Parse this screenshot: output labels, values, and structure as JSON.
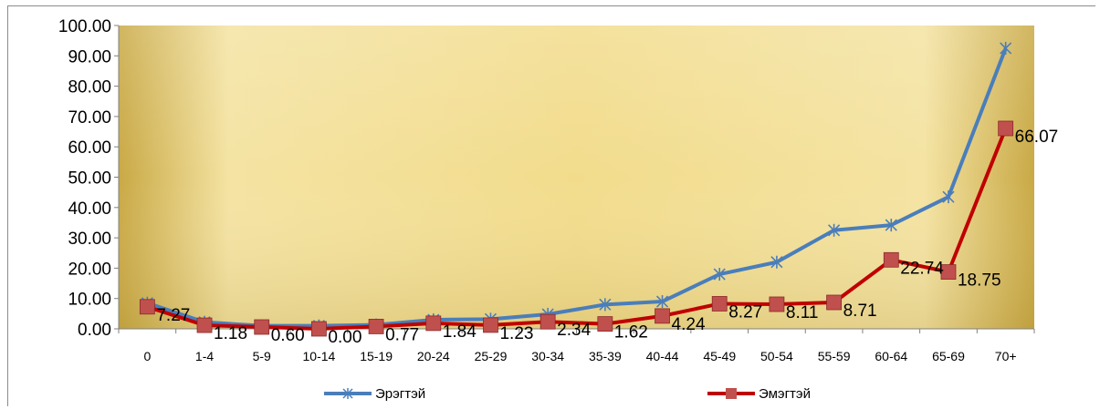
{
  "chart_data": {
    "type": "line",
    "title": "",
    "xlabel": "",
    "ylabel": "",
    "ylim": [
      0,
      100
    ],
    "yticks": [
      "0.00",
      "10.00",
      "20.00",
      "30.00",
      "40.00",
      "50.00",
      "60.00",
      "70.00",
      "80.00",
      "90.00",
      "100.00"
    ],
    "categories": [
      "0",
      "1-4",
      "5-9",
      "10-14",
      "15-19",
      "20-24",
      "25-29",
      "30-34",
      "35-39",
      "40-44",
      "45-49",
      "50-54",
      "55-59",
      "60-64",
      "65-69",
      "70+"
    ],
    "series": [
      {
        "name": "Эрэгтэй",
        "color": "#4a7ebb",
        "marker": "star",
        "values": [
          8.5,
          2.2,
          1.0,
          1.0,
          1.3,
          3.0,
          3.2,
          4.8,
          8.0,
          9.0,
          18.0,
          22.0,
          32.5,
          34.2,
          43.5,
          92.5
        ]
      },
      {
        "name": "Эмэгтэй",
        "color": "#c0504d",
        "line_color": "#c00000",
        "marker": "square",
        "values": [
          7.27,
          1.18,
          0.6,
          0.0,
          0.77,
          1.84,
          1.23,
          2.34,
          1.62,
          4.24,
          8.27,
          8.11,
          8.71,
          22.74,
          18.75,
          66.07
        ],
        "labels": [
          "7.27",
          "1.18",
          "0.60",
          "0.00",
          "0.77",
          "1.84",
          "1.23",
          "2.34",
          "1.62",
          "4.24",
          "8.27",
          "8.11",
          "8.71",
          "22.74",
          "18.75",
          "66.07"
        ]
      }
    ],
    "legend_position": "bottom",
    "grid": false,
    "plot_background": "#f2dc8c"
  }
}
